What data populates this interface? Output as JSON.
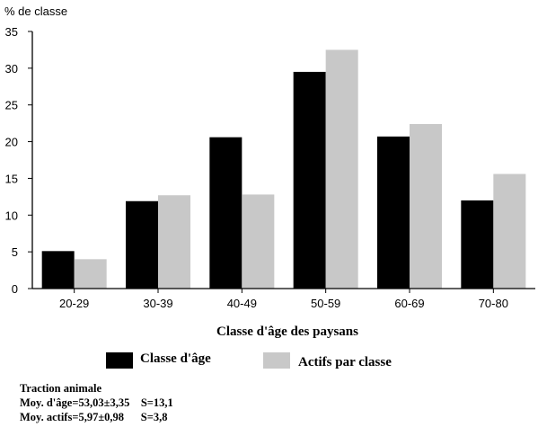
{
  "chart_data": {
    "type": "bar",
    "ylabel": "% de classe",
    "xlabel": "Classe d'âge des paysans",
    "categories": [
      "20-29",
      "30-39",
      "40-49",
      "50-59",
      "60-69",
      "70-80"
    ],
    "series": [
      {
        "name": "Classe d'âge",
        "values": [
          5.1,
          11.9,
          20.6,
          29.5,
          20.7,
          12.0
        ],
        "color": "#000000"
      },
      {
        "name": "Actifs par classe",
        "values": [
          4.0,
          12.7,
          12.8,
          32.5,
          22.4,
          15.6
        ],
        "color": "#c8c8c8"
      }
    ],
    "ylim": [
      0,
      35
    ],
    "yticks": [
      0,
      5,
      10,
      15,
      20,
      25,
      30,
      35
    ],
    "grid": false,
    "legend_position": "bottom"
  },
  "notes": {
    "title": "Traction animale",
    "line1": "Moy. d'âge=53,03±3,35    S=13,1",
    "line2": "Moy. actifs=5,97±0,98      S=3,8"
  }
}
